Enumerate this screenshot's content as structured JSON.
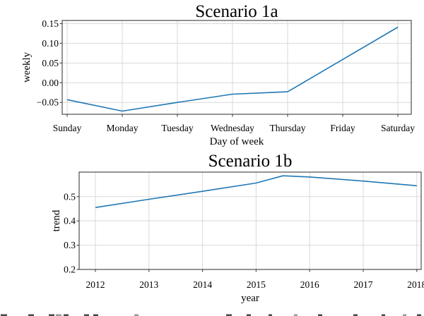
{
  "chart_data": [
    {
      "type": "line",
      "title": "Scenario 1a",
      "xlabel": "Day of week",
      "ylabel": "weekly",
      "categories": [
        "Sunday",
        "Monday",
        "Tuesday",
        "Wednesday",
        "Thursday",
        "Friday",
        "Saturday"
      ],
      "values": [
        -0.043,
        -0.072,
        -0.05,
        -0.029,
        -0.023,
        0.059,
        0.141
      ],
      "yticks": [
        0.15,
        0.1,
        0.05,
        0.0,
        -0.05
      ],
      "ytick_labels": [
        "0.15",
        "0.10",
        "0.05",
        "0.00",
        "−0.05"
      ],
      "ylim": [
        -0.08,
        0.158
      ],
      "grid": true,
      "legend": null,
      "line_color": "#1f77b4"
    },
    {
      "type": "line",
      "title": "Scenario 1b",
      "xlabel": "year",
      "ylabel": "trend",
      "x": [
        2012,
        2013,
        2014,
        2015,
        2015.5,
        2016,
        2017,
        2018
      ],
      "values": [
        0.455,
        0.489,
        0.522,
        0.556,
        0.586,
        0.581,
        0.564,
        0.545
      ],
      "xticks": [
        2012,
        2013,
        2014,
        2015,
        2016,
        2017,
        2018
      ],
      "xtick_labels": [
        "2012",
        "2013",
        "2014",
        "2015",
        "2016",
        "2017",
        "2018"
      ],
      "yticks": [
        0.5,
        0.4,
        0.3,
        0.2
      ],
      "ytick_labels": [
        "0.5",
        "0.4",
        "0.3",
        "0.2"
      ],
      "ylim": [
        0.2,
        0.601
      ],
      "xlim": [
        2011.7,
        2018.08
      ],
      "grid": true,
      "legend": null,
      "line_color": "#1f77b4"
    }
  ],
  "colors": {
    "line": "#1f77b4",
    "grid": "#d9d9d9",
    "spine": "#4d4d4d",
    "text": "#000000",
    "caption_fragment": "#4a4a4a"
  }
}
